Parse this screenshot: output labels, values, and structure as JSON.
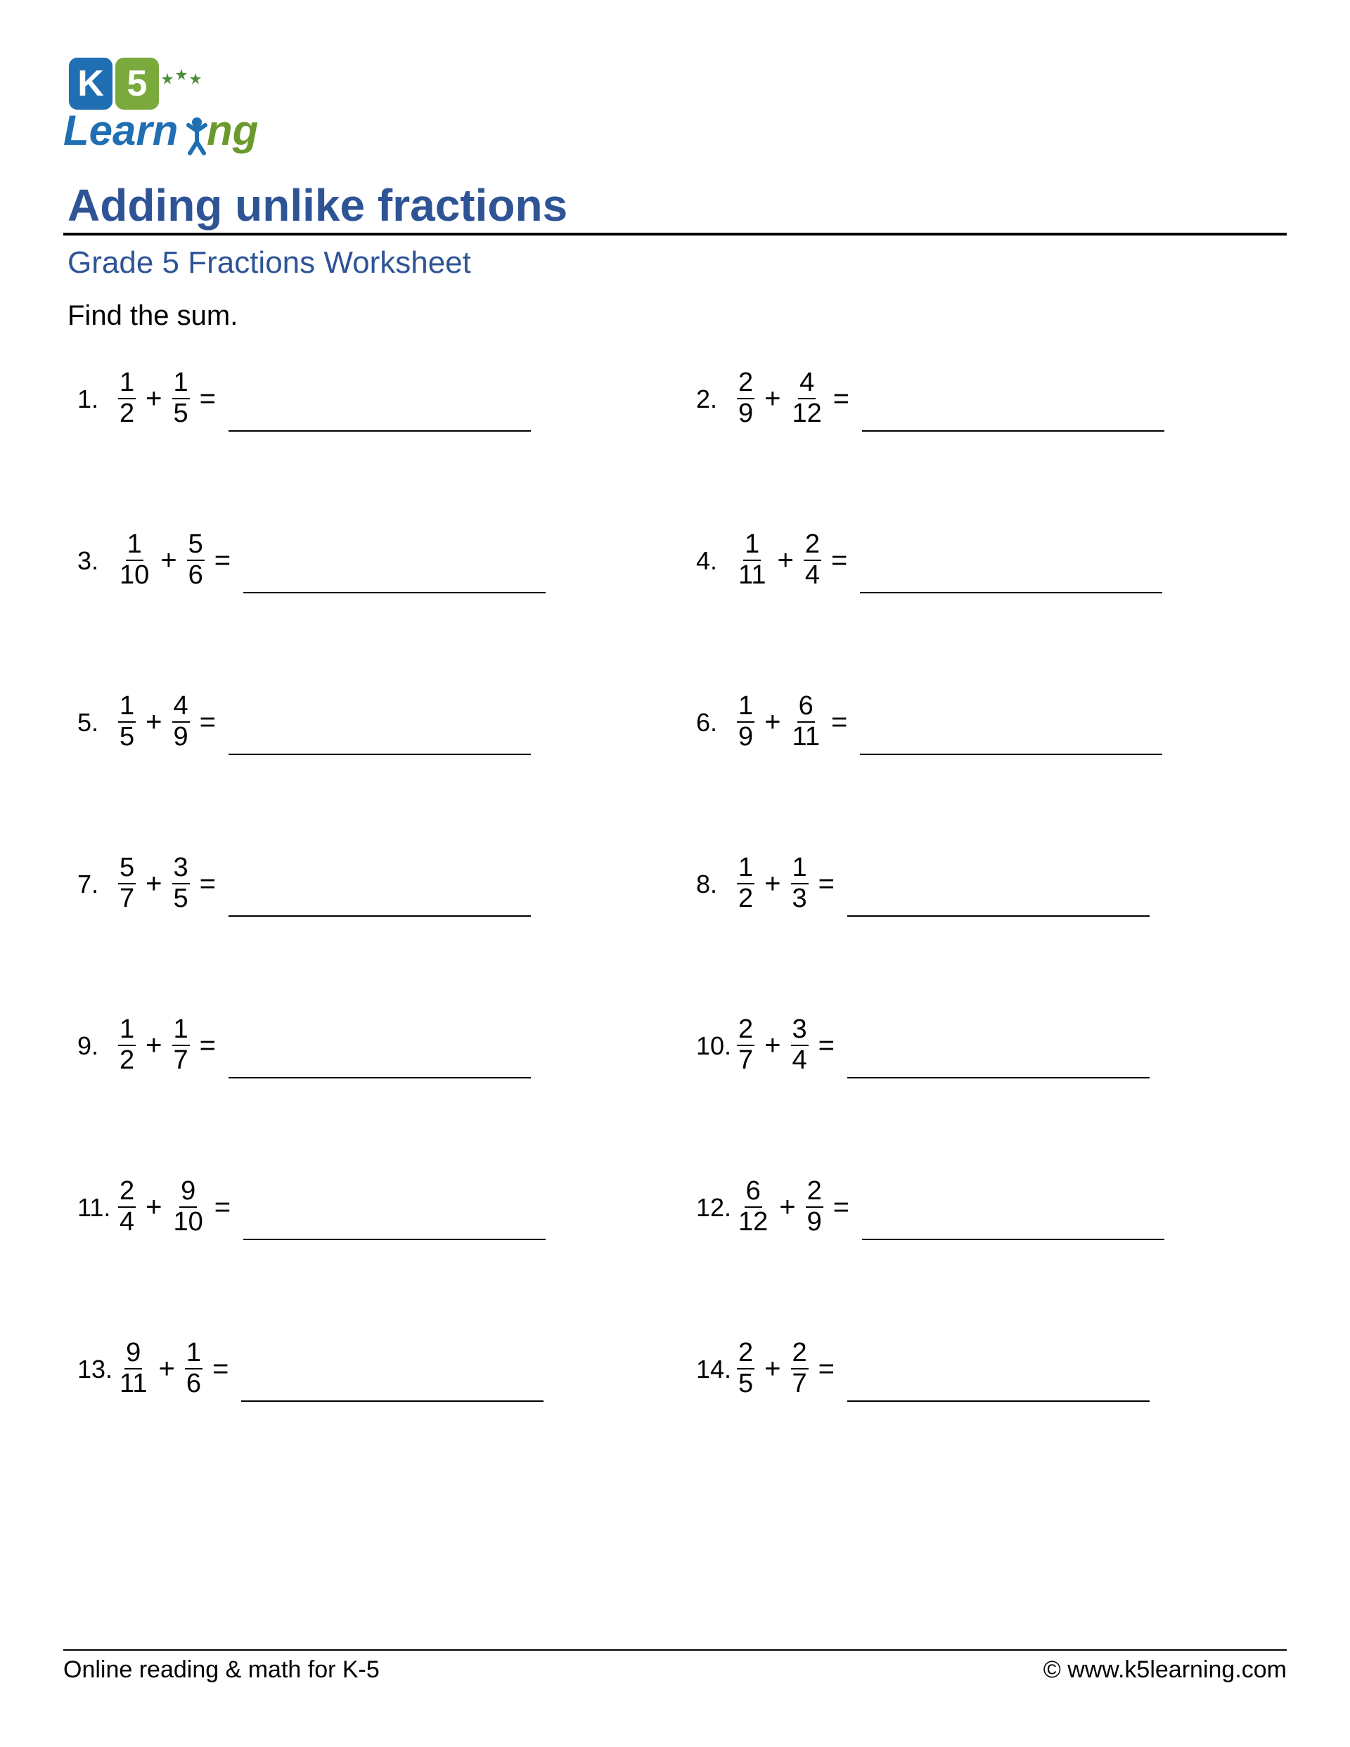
{
  "logo": {
    "k_bg": "#1f6fb2",
    "five_bg": "#7aa93c",
    "text_color": "#6a9a2d",
    "text_shadow": "#1f6fb2",
    "star_color": "#4a8f3a",
    "figure_color": "#1f6fb2"
  },
  "title": "Adding unlike fractions",
  "subtitle": "Grade 5 Fractions Worksheet",
  "instructions": "Find the sum.",
  "title_color": "#2f5496",
  "problems": [
    {
      "n": "1.",
      "a_num": "1",
      "a_den": "2",
      "b_num": "1",
      "b_den": "5"
    },
    {
      "n": "2.",
      "a_num": "2",
      "a_den": "9",
      "b_num": "4",
      "b_den": "12"
    },
    {
      "n": "3.",
      "a_num": "1",
      "a_den": "10",
      "b_num": "5",
      "b_den": "6"
    },
    {
      "n": "4.",
      "a_num": "1",
      "a_den": "11",
      "b_num": "2",
      "b_den": "4"
    },
    {
      "n": "5.",
      "a_num": "1",
      "a_den": "5",
      "b_num": "4",
      "b_den": "9"
    },
    {
      "n": "6.",
      "a_num": "1",
      "a_den": "9",
      "b_num": "6",
      "b_den": "11"
    },
    {
      "n": "7.",
      "a_num": "5",
      "a_den": "7",
      "b_num": "3",
      "b_den": "5"
    },
    {
      "n": "8.",
      "a_num": "1",
      "a_den": "2",
      "b_num": "1",
      "b_den": "3"
    },
    {
      "n": "9.",
      "a_num": "1",
      "a_den": "2",
      "b_num": "1",
      "b_den": "7"
    },
    {
      "n": "10.",
      "a_num": "2",
      "a_den": "7",
      "b_num": "3",
      "b_den": "4"
    },
    {
      "n": "11.",
      "a_num": "2",
      "a_den": "4",
      "b_num": "9",
      "b_den": "10"
    },
    {
      "n": "12.",
      "a_num": "6",
      "a_den": "12",
      "b_num": "2",
      "b_den": "9"
    },
    {
      "n": "13.",
      "a_num": "9",
      "a_den": "11",
      "b_num": "1",
      "b_den": "6"
    },
    {
      "n": "14.",
      "a_num": "2",
      "a_den": "5",
      "b_num": "2",
      "b_den": "7"
    }
  ],
  "operator": "+",
  "equals": "=",
  "footer": {
    "left": "Online reading & math for K-5",
    "right_prefix": "©  ",
    "right_url": "www.k5learning.com"
  }
}
